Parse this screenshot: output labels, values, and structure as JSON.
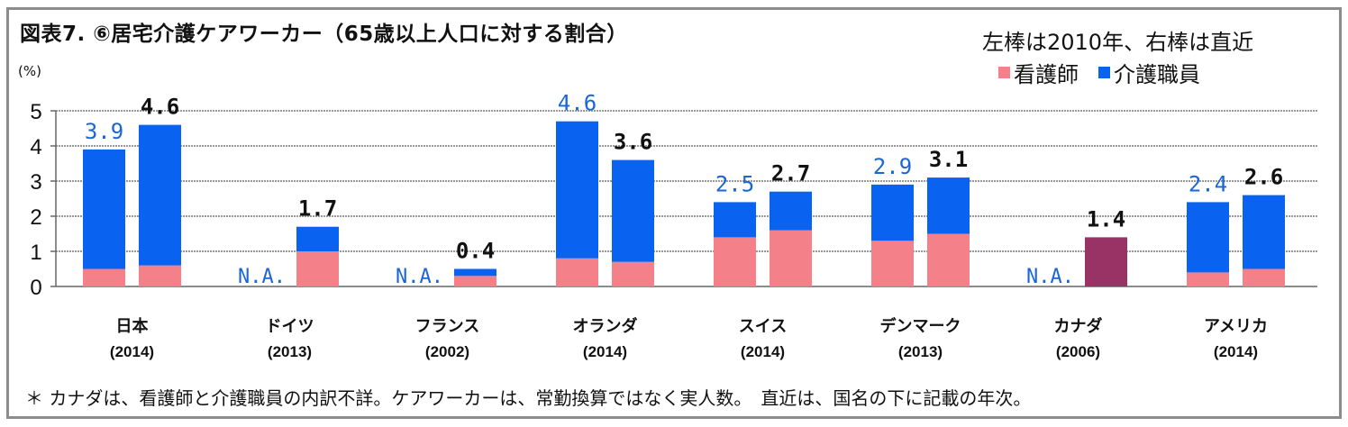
{
  "chart_data": {
    "type": "bar",
    "stacked": true,
    "title": "図表7. ⑥居宅介護ケアワーカー（65歳以上人口に対する割合）",
    "legend_note": "左棒は2010年、右棒は直近",
    "ylabel": "(%)",
    "ylim": [
      0,
      5
    ],
    "yticks": [
      "0",
      "1",
      "2",
      "3",
      "4",
      "5"
    ],
    "grid": true,
    "legend_position": "top-right",
    "series": [
      {
        "name": "看護師",
        "color": "#f4808a"
      },
      {
        "name": "介護職員",
        "color": "#0a62f0"
      }
    ],
    "total_only_color": "#993366",
    "categories": [
      {
        "name": "日本",
        "year": "(2014)",
        "left": {
          "nurse": 0.5,
          "care": 3.4,
          "label": "3.9"
        },
        "right": {
          "nurse": 0.6,
          "care": 4.0,
          "label": "4.6"
        }
      },
      {
        "name": "ドイツ",
        "year": "(2013)",
        "left": {
          "label": "N.A."
        },
        "right": {
          "nurse": 1.0,
          "care": 0.7,
          "label": "1.7"
        }
      },
      {
        "name": "フランス",
        "year": "(2002)",
        "left": {
          "label": "N.A."
        },
        "right": {
          "nurse": 0.3,
          "care": 0.2,
          "label": "0.4"
        }
      },
      {
        "name": "オランダ",
        "year": "(2014)",
        "left": {
          "nurse": 0.8,
          "care": 3.9,
          "label": "4.6"
        },
        "right": {
          "nurse": 0.7,
          "care": 2.9,
          "label": "3.6"
        }
      },
      {
        "name": "スイス",
        "year": "(2014)",
        "left": {
          "nurse": 1.4,
          "care": 1.0,
          "label": "2.5"
        },
        "right": {
          "nurse": 1.6,
          "care": 1.1,
          "label": "2.7"
        }
      },
      {
        "name": "デンマーク",
        "year": "(2013)",
        "left": {
          "nurse": 1.3,
          "care": 1.6,
          "label": "2.9"
        },
        "right": {
          "nurse": 1.5,
          "care": 1.6,
          "label": "3.1"
        }
      },
      {
        "name": "カナダ",
        "year": "(2006)",
        "left": {
          "label": "N.A."
        },
        "right": {
          "total": 1.4,
          "label": "1.4"
        }
      },
      {
        "name": "アメリカ",
        "year": "(2014)",
        "left": {
          "nurse": 0.4,
          "care": 2.0,
          "label": "2.4"
        },
        "right": {
          "nurse": 0.5,
          "care": 2.1,
          "label": "2.6"
        }
      }
    ],
    "footnote": "＊ カナダは、看護師と介護職員の内訳不詳。ケアワーカーは、常勤換算ではなく実人数。　直近は、国名の下に記載の年次。"
  }
}
